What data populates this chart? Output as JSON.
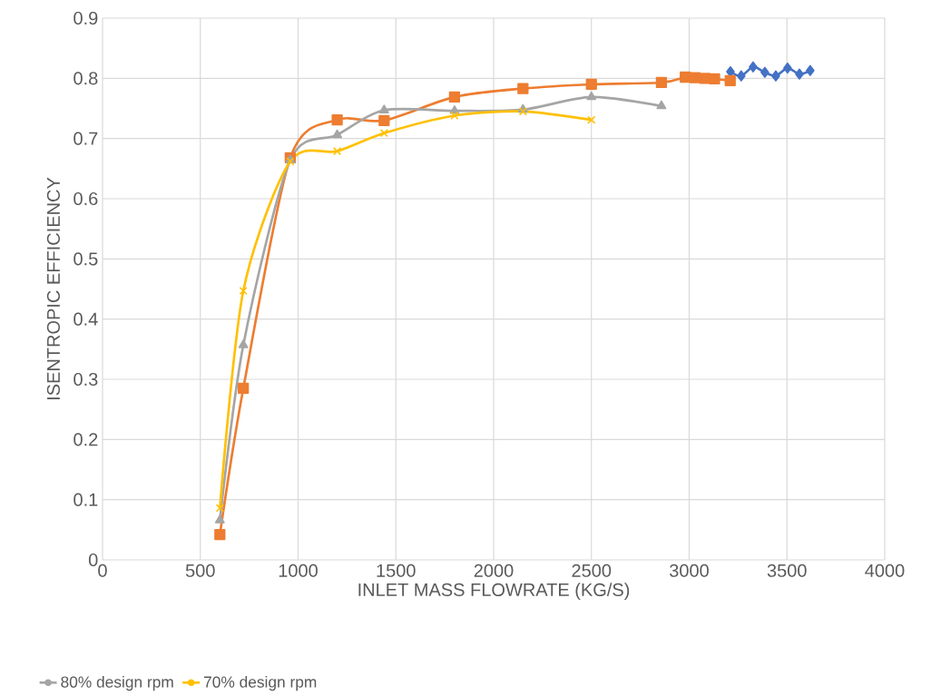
{
  "chart_data": {
    "type": "line",
    "xlabel": "INLET MASS FLOWRATE (KG/S)",
    "ylabel": "ISENTROPIC EFFICIENCY",
    "xlim": [
      0,
      4000
    ],
    "ylim": [
      0,
      0.9
    ],
    "xticks": [
      0,
      500,
      1000,
      1500,
      2000,
      2500,
      3000,
      3500,
      4000
    ],
    "yticks": [
      0,
      0.1,
      0.2,
      0.3,
      0.4,
      0.5,
      0.6,
      0.7,
      0.8,
      0.9
    ],
    "grid": true,
    "legend": "bottom left",
    "series": [
      {
        "color": "#4472c4",
        "marker": "diamond",
        "x": [
          3211,
          3266,
          3327,
          3387,
          3443,
          3503,
          3564,
          3619
        ],
        "values": [
          0.811,
          0.804,
          0.819,
          0.81,
          0.804,
          0.817,
          0.807,
          0.813
        ]
      },
      {
        "color": "#ed7d31",
        "marker": "square",
        "x": [
          600,
          720,
          960,
          1200,
          1440,
          1800,
          2150,
          2500,
          2858,
          2980,
          3030,
          3080,
          3130,
          3210
        ],
        "values": [
          0.042,
          0.285,
          0.668,
          0.731,
          0.73,
          0.769,
          0.783,
          0.79,
          0.793,
          0.802,
          0.801,
          0.8,
          0.799,
          0.796
        ]
      },
      {
        "name": "80% design rpm",
        "color": "#a5a5a5",
        "marker": "triangle",
        "x": [
          600,
          720,
          960,
          1200,
          1440,
          1800,
          2150,
          2500,
          2858
        ],
        "values": [
          0.066,
          0.357,
          0.664,
          0.706,
          0.747,
          0.746,
          0.748,
          0.769,
          0.754
        ]
      },
      {
        "name": "70% design rpm",
        "color": "#ffc000",
        "marker": "cross",
        "x": [
          600,
          720,
          960,
          1200,
          1440,
          1800,
          2150,
          2500
        ],
        "values": [
          0.086,
          0.447,
          0.662,
          0.679,
          0.709,
          0.738,
          0.745,
          0.731
        ]
      }
    ]
  }
}
